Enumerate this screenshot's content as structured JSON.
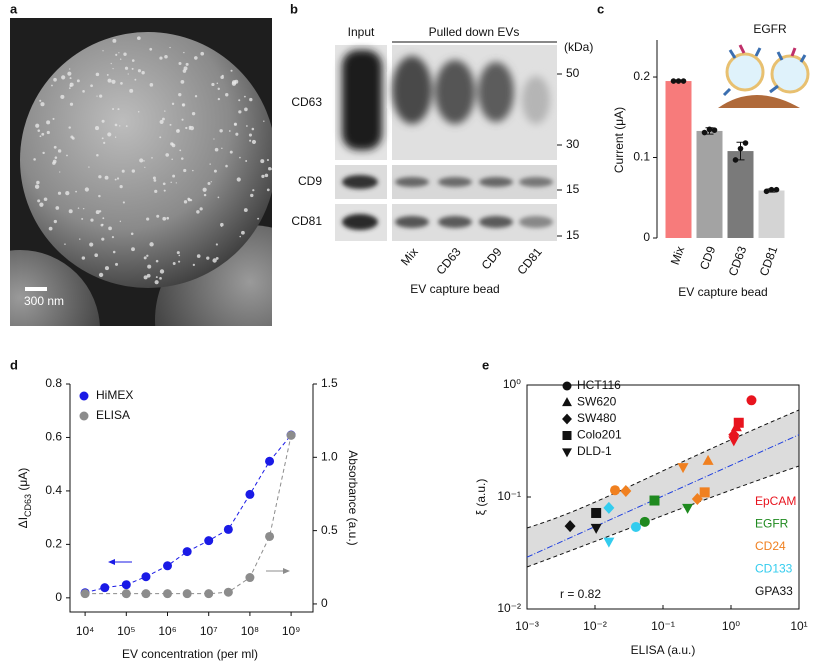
{
  "panel_labels": [
    "a",
    "b",
    "c",
    "d",
    "e"
  ],
  "sem_image": {
    "scale_bar": "300 nm"
  },
  "blot": {
    "headers": [
      "Input",
      "Pulled down EVs"
    ],
    "unit": "(kDa)",
    "markers": [
      50,
      30,
      15,
      15
    ],
    "rows": [
      "CD63",
      "CD9",
      "CD81"
    ],
    "lanes": [
      "Mix",
      "CD63",
      "CD9",
      "CD81"
    ],
    "xlabel": "EV capture bead"
  },
  "chart_data": [
    {
      "type": "bar",
      "ylabel": "Current (μA)",
      "xlabel": "EV capture bead",
      "annotation": "EGFR",
      "categories": [
        "Mix",
        "CD9",
        "CD63",
        "CD81"
      ],
      "values": [
        0.195,
        0.133,
        0.108,
        0.059
      ],
      "errors": [
        0.001,
        0.004,
        0.011,
        0.002
      ],
      "points": [
        [
          0.195,
          0.195,
          0.195
        ],
        [
          0.131,
          0.135,
          0.134
        ],
        [
          0.097,
          0.111,
          0.118
        ],
        [
          0.058,
          0.06,
          0.06
        ]
      ],
      "colors": [
        "#f77b7b",
        "#a3a3a3",
        "#7a7a7a",
        "#d4d4d4"
      ],
      "ylim": [
        0,
        0.246
      ],
      "yticks": [
        0,
        0.1,
        0.2
      ]
    },
    {
      "type": "line",
      "xlabel": "EV concentration (per ml)",
      "ylabel": [
        "ΔI",
        "CD63",
        " (μA)"
      ],
      "y2label": "Absorbance (a.u.)",
      "xscale": "log",
      "xlim": [
        4300,
        3400000000
      ],
      "xticks": [
        {
          "value": 10000,
          "label": "10⁴"
        },
        {
          "value": 100000,
          "label": "10⁵"
        },
        {
          "value": 1000000,
          "label": "10⁶"
        },
        {
          "value": 10000000,
          "label": "10⁷"
        },
        {
          "value": 100000000,
          "label": "10⁸"
        },
        {
          "value": 1000000000,
          "label": "10⁹"
        }
      ],
      "ylim": [
        -0.053,
        0.8
      ],
      "yticks": [
        0,
        0.2,
        0.4,
        0.6,
        0.8
      ],
      "y2lim": [
        -0.055,
        1.5
      ],
      "y2ticks": [
        0,
        0.5,
        {
          "value": 1,
          "label": "1.0"
        },
        1.5
      ],
      "legend": "upper left",
      "series": [
        {
          "name": "HiMEX",
          "color": "#1a1ae6",
          "x": [
            10000,
            30000,
            100000,
            300000,
            1000000,
            3000000,
            10000000,
            30000000,
            100000000,
            300000000,
            1000000000
          ],
          "values": [
            0.019,
            0.038,
            0.049,
            0.079,
            0.12,
            0.173,
            0.214,
            0.256,
            0.387,
            0.511,
            0.609
          ]
        },
        {
          "name": "ELISA",
          "color": "#8c8c8c",
          "axis": "y2",
          "x": [
            10000,
            100000,
            300000,
            1000000,
            3000000,
            10000000,
            30000000,
            100000000,
            300000000,
            1000000000
          ],
          "values": [
            0.07,
            0.07,
            0.07,
            0.07,
            0.07,
            0.07,
            0.08,
            0.18,
            0.46,
            1.15
          ]
        }
      ]
    },
    {
      "type": "scatter",
      "xscale": "log",
      "yscale": "log",
      "xlabel": "ELISA (a.u.)",
      "ylabel": "ξ (a.u.)",
      "annotation": "r = 0.82",
      "xlim": [
        0.001,
        10
      ],
      "ylim": [
        0.01,
        1
      ],
      "xticks": [
        {
          "value": 0.001,
          "label": "10⁻³"
        },
        {
          "value": 0.01,
          "label": "10⁻²"
        },
        {
          "value": 0.1,
          "label": "10⁻¹"
        },
        {
          "value": 1,
          "label": "10⁰"
        },
        {
          "value": 10,
          "label": "10¹"
        }
      ],
      "yticks": [
        {
          "value": 0.01,
          "label": "10⁻²"
        },
        {
          "value": 0.1,
          "label": "10⁻¹"
        },
        {
          "value": 1,
          "label": "10⁰"
        }
      ],
      "shapes": [
        {
          "name": "HCT116",
          "marker": "circle"
        },
        {
          "name": "SW620",
          "marker": "triangle"
        },
        {
          "name": "SW480",
          "marker": "diamond"
        },
        {
          "name": "Colo201",
          "marker": "square"
        },
        {
          "name": "DLD-1",
          "marker": "triangle-down"
        }
      ],
      "series": [
        {
          "name": "EpCAM",
          "color": "#e8141e",
          "x": [
            2.0,
            1.2,
            1.1,
            1.3,
            1.1
          ],
          "values": [
            0.73,
            0.42,
            0.36,
            0.46,
            0.32
          ],
          "markers": [
            "circle",
            "triangle",
            "diamond",
            "square",
            "triangle-down"
          ]
        },
        {
          "name": "EGFR",
          "color": "#1f8a1f",
          "x": [
            0.054,
            0.075,
            0.23
          ],
          "values": [
            0.06,
            0.093,
            0.08
          ],
          "markers": [
            "circle",
            "square",
            "triangle-down"
          ]
        },
        {
          "name": "CD24",
          "color": "#f08020",
          "x": [
            0.0197,
            0.0284,
            0.197,
            0.46,
            0.41,
            0.32
          ],
          "values": [
            0.115,
            0.113,
            0.185,
            0.21,
            0.11,
            0.096
          ],
          "markers": [
            "circle",
            "diamond",
            "triangle-down",
            "triangle",
            "square",
            "diamond"
          ]
        },
        {
          "name": "CD133",
          "color": "#33ccee",
          "x": [
            0.04,
            0.016,
            0.016
          ],
          "values": [
            0.054,
            0.08,
            0.04
          ],
          "markers": [
            "circle",
            "diamond",
            "triangle-down"
          ]
        },
        {
          "name": "GPA33",
          "color": "#111111",
          "x": [
            0.0043,
            0.0104,
            0.0104
          ],
          "values": [
            0.055,
            0.072,
            0.053
          ],
          "markers": [
            "diamond",
            "square",
            "triangle-down"
          ]
        }
      ],
      "fit": {
        "color": "#2040e0",
        "x": [
          0.001,
          10
        ],
        "values": [
          0.029,
          0.36
        ]
      }
    }
  ]
}
